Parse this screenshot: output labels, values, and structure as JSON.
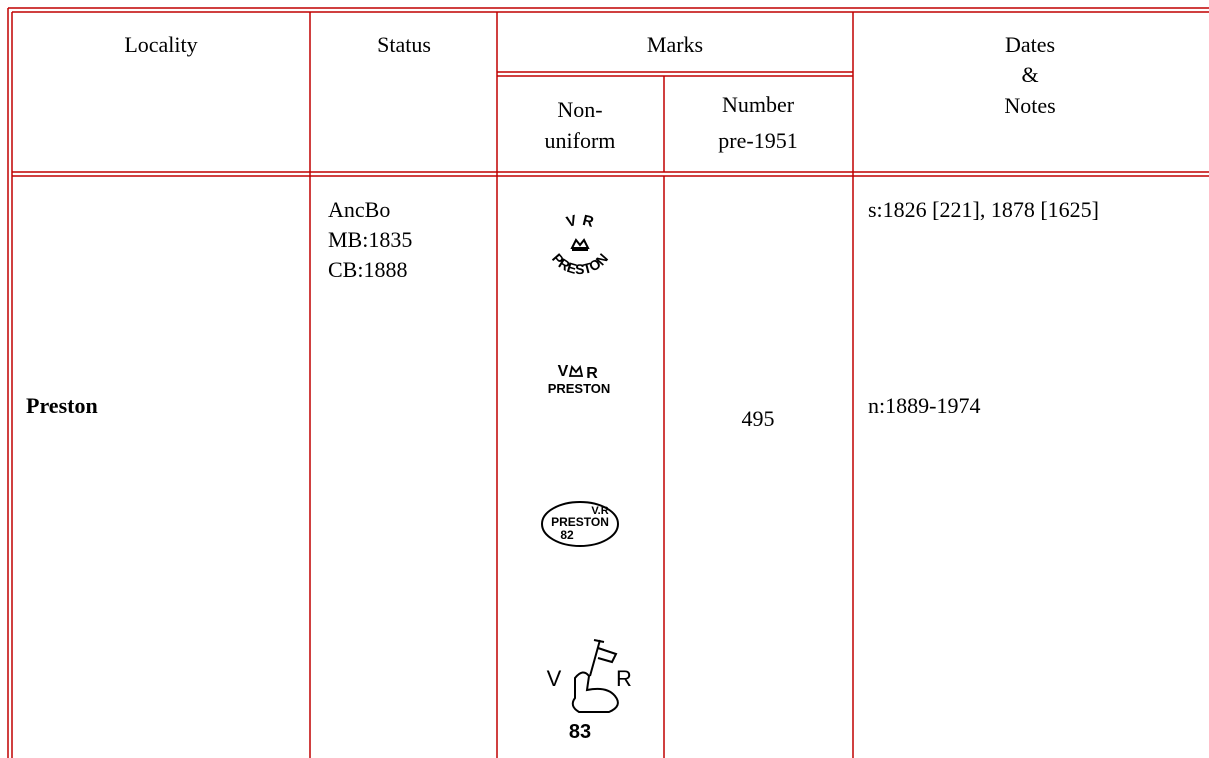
{
  "table": {
    "header": {
      "locality": "Locality",
      "status": "Status",
      "marks": "Marks",
      "non_uniform": [
        "Non-",
        "uniform"
      ],
      "number": [
        "Number",
        "pre-1951"
      ],
      "dates": [
        "Dates",
        "&",
        "Notes"
      ]
    },
    "rows": [
      {
        "locality": "Preston",
        "status": [
          "AncBo",
          "MB:1835",
          "CB:1888"
        ],
        "marks": [
          {
            "texts": [
              "V R",
              "PRESTON"
            ]
          },
          {
            "texts": [
              "V",
              "R",
              "PRESTON"
            ]
          },
          {
            "texts": [
              "PRESTON",
              "V.R",
              "82"
            ]
          },
          {
            "texts": [
              "V",
              "R",
              "83"
            ]
          }
        ],
        "number": "495",
        "notes": [
          "s:1826 [221], 1878 [1625]",
          "n:1889-1974"
        ]
      }
    ]
  }
}
